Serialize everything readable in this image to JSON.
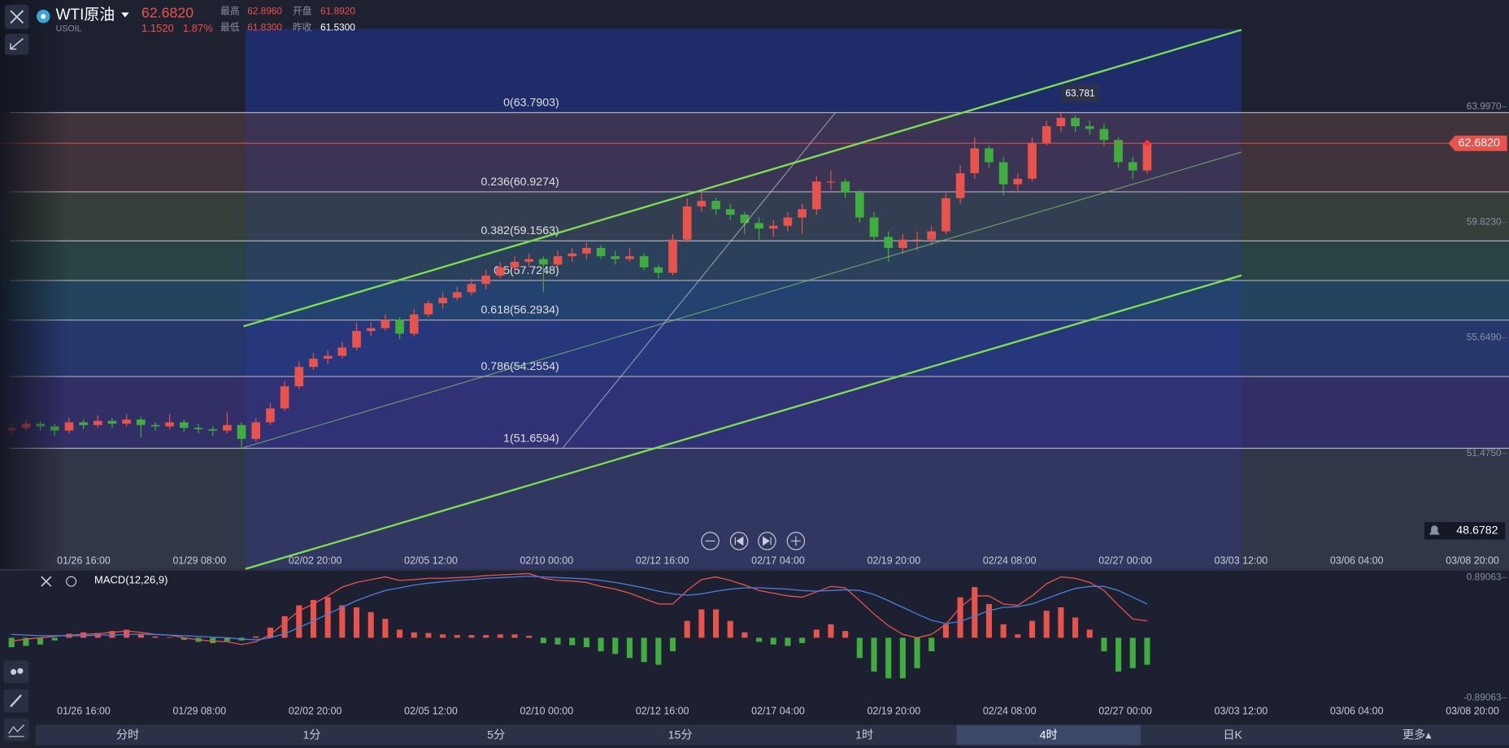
{
  "header": {
    "symbol": "WTI原油",
    "code": "USOIL",
    "price": "62.6820",
    "change": "1.1520",
    "change_pct": "1.87%",
    "high_label": "最高",
    "high": "62.8960",
    "open_label": "开盘",
    "open": "61.8920",
    "low_label": "最低",
    "low": "61.8300",
    "prev_close_label": "昨收",
    "prev_close": "61.5300"
  },
  "chart_data": [
    {
      "type": "candlestick",
      "up_color": "#e8534b",
      "down_color": "#3fae3f",
      "ylim": [
        47.3,
        67.86
      ],
      "yticks": [
        {
          "value": 63.997,
          "label": "63.9970"
        },
        {
          "value": 59.823,
          "label": "59.8230"
        },
        {
          "value": 55.649,
          "label": "55.6490"
        },
        {
          "value": 51.475,
          "label": "51.4750"
        }
      ],
      "time_labels": [
        "01/26 16:00",
        "01/29 08:00",
        "02/02 20:00",
        "02/05 12:00",
        "02/10 00:00",
        "02/12 16:00",
        "02/17 04:00",
        "02/19 20:00",
        "02/24 08:00",
        "02/27 00:00",
        "03/03 12:00",
        "03/06 04:00",
        "03/08 20:00"
      ],
      "fib_levels": [
        {
          "label": "0(63.7903)",
          "value": 63.7903
        },
        {
          "label": "0.236(60.9274)",
          "value": 60.9274
        },
        {
          "label": "0.382(59.1563)",
          "value": 59.1563
        },
        {
          "label": "0.5(57.7248)",
          "value": 57.7248
        },
        {
          "label": "0.618(56.2934)",
          "value": 56.2934
        },
        {
          "label": "0.786(54.2554)",
          "value": 54.2554
        },
        {
          "label": "1(51.6594)",
          "value": 51.6594
        }
      ],
      "last_price": {
        "value": 62.682,
        "label": "62.6820"
      },
      "high_marker": 63.781,
      "alert_price": 48.6782,
      "candles": [
        [
          52.3,
          52.55,
          52.15,
          52.4
        ],
        [
          52.4,
          52.7,
          52.3,
          52.55
        ],
        [
          52.55,
          52.65,
          52.3,
          52.45
        ],
        [
          52.45,
          52.55,
          52.1,
          52.3
        ],
        [
          52.3,
          52.75,
          52.2,
          52.6
        ],
        [
          52.6,
          52.7,
          52.35,
          52.5
        ],
        [
          52.5,
          52.85,
          52.4,
          52.65
        ],
        [
          52.65,
          52.75,
          52.4,
          52.55
        ],
        [
          52.55,
          52.9,
          52.45,
          52.7
        ],
        [
          52.7,
          52.8,
          52.05,
          52.5
        ],
        [
          52.5,
          52.6,
          52.3,
          52.45
        ],
        [
          52.45,
          52.9,
          52.35,
          52.6
        ],
        [
          52.6,
          52.7,
          52.25,
          52.4
        ],
        [
          52.4,
          52.55,
          52.2,
          52.35
        ],
        [
          52.35,
          52.45,
          52.1,
          52.3
        ],
        [
          52.3,
          52.95,
          52.2,
          52.5
        ],
        [
          52.5,
          52.6,
          51.66,
          52.0
        ],
        [
          52.0,
          52.75,
          51.9,
          52.6
        ],
        [
          52.6,
          53.3,
          52.5,
          53.1
        ],
        [
          53.1,
          54.1,
          53.0,
          53.9
        ],
        [
          53.9,
          54.8,
          53.8,
          54.6
        ],
        [
          54.6,
          55.1,
          54.5,
          54.9
        ],
        [
          54.9,
          55.2,
          54.7,
          55.0
        ],
        [
          55.0,
          55.5,
          54.9,
          55.3
        ],
        [
          55.3,
          56.2,
          55.2,
          55.9
        ],
        [
          55.9,
          56.2,
          55.7,
          56.0
        ],
        [
          56.0,
          56.5,
          55.9,
          56.3
        ],
        [
          56.3,
          56.4,
          55.6,
          55.8
        ],
        [
          55.8,
          56.7,
          55.7,
          56.5
        ],
        [
          56.5,
          57.0,
          56.4,
          56.9
        ],
        [
          56.9,
          57.3,
          56.7,
          57.1
        ],
        [
          57.1,
          57.5,
          57.0,
          57.3
        ],
        [
          57.3,
          57.8,
          57.2,
          57.6
        ],
        [
          57.6,
          58.1,
          57.4,
          57.9
        ],
        [
          57.9,
          58.4,
          57.8,
          58.2
        ],
        [
          58.2,
          58.6,
          58.0,
          58.4
        ],
        [
          58.4,
          58.7,
          58.2,
          58.5
        ],
        [
          58.5,
          58.6,
          57.3,
          58.3
        ],
        [
          58.3,
          58.8,
          58.2,
          58.6
        ],
        [
          58.6,
          58.9,
          58.4,
          58.7
        ],
        [
          58.7,
          59.1,
          58.5,
          58.9
        ],
        [
          58.9,
          59.0,
          58.5,
          58.6
        ],
        [
          58.6,
          58.8,
          58.3,
          58.5
        ],
        [
          58.5,
          58.9,
          58.4,
          58.6
        ],
        [
          58.6,
          58.7,
          58.1,
          58.2
        ],
        [
          58.2,
          58.3,
          57.8,
          58.0
        ],
        [
          58.0,
          59.4,
          57.9,
          59.2
        ],
        [
          59.2,
          60.7,
          59.1,
          60.4
        ],
        [
          60.4,
          60.9,
          60.2,
          60.6
        ],
        [
          60.6,
          60.7,
          60.1,
          60.3
        ],
        [
          60.3,
          60.5,
          59.9,
          60.1
        ],
        [
          60.1,
          60.2,
          59.4,
          59.8
        ],
        [
          59.8,
          60.0,
          59.2,
          59.6
        ],
        [
          59.6,
          59.9,
          59.3,
          59.7
        ],
        [
          59.7,
          60.2,
          59.5,
          60.0
        ],
        [
          60.0,
          60.5,
          59.4,
          60.3
        ],
        [
          60.3,
          61.5,
          60.1,
          61.3
        ],
        [
          61.3,
          61.7,
          61.0,
          61.3
        ],
        [
          61.3,
          61.4,
          60.7,
          60.9
        ],
        [
          60.9,
          61.0,
          59.8,
          60.0
        ],
        [
          60.0,
          60.2,
          59.1,
          59.3
        ],
        [
          59.3,
          59.5,
          58.4,
          58.9
        ],
        [
          58.9,
          59.4,
          58.7,
          59.2
        ],
        [
          59.2,
          59.5,
          58.8,
          59.2
        ],
        [
          59.2,
          59.7,
          59.0,
          59.5
        ],
        [
          59.5,
          60.9,
          59.4,
          60.7
        ],
        [
          60.7,
          61.9,
          60.5,
          61.6
        ],
        [
          61.6,
          62.9,
          61.4,
          62.5
        ],
        [
          62.5,
          62.6,
          61.8,
          62.0
        ],
        [
          62.0,
          62.2,
          60.8,
          61.2
        ],
        [
          61.2,
          61.6,
          60.9,
          61.4
        ],
        [
          61.4,
          62.9,
          61.3,
          62.7
        ],
        [
          62.7,
          63.5,
          62.6,
          63.3
        ],
        [
          63.3,
          63.78,
          63.1,
          63.6
        ],
        [
          63.6,
          63.7,
          63.1,
          63.3
        ],
        [
          63.3,
          63.5,
          63.0,
          63.2
        ],
        [
          63.2,
          63.4,
          62.6,
          62.8
        ],
        [
          62.8,
          62.9,
          61.8,
          62.0
        ],
        [
          62.0,
          62.2,
          61.4,
          61.7
        ],
        [
          61.7,
          62.8,
          61.6,
          62.682
        ]
      ]
    },
    {
      "type": "macd",
      "title": "MACD(12,26,9)",
      "ylim": [
        -0.89063,
        0.89063
      ],
      "yticks": [
        0.89063,
        -0.89063
      ],
      "pos_color": "#e8534b",
      "neg_color": "#3fae3f",
      "dif_color": "#e8534b",
      "dea_color": "#4a7fe0",
      "histogram": [
        -0.14,
        -0.12,
        -0.1,
        -0.04,
        0.06,
        0.08,
        0.07,
        0.1,
        0.12,
        0.06,
        0.02,
        0.01,
        -0.03,
        -0.06,
        -0.08,
        -0.05,
        -0.04,
        0.02,
        0.15,
        0.32,
        0.48,
        0.56,
        0.6,
        0.48,
        0.45,
        0.38,
        0.28,
        0.12,
        0.08,
        0.07,
        0.05,
        0.04,
        0.04,
        0.04,
        0.05,
        0.05,
        0.03,
        -0.08,
        -0.1,
        -0.11,
        -0.14,
        -0.2,
        -0.24,
        -0.3,
        -0.36,
        -0.4,
        -0.2,
        0.25,
        0.42,
        0.42,
        0.25,
        0.08,
        -0.06,
        -0.1,
        -0.12,
        -0.08,
        0.12,
        0.2,
        0.1,
        -0.3,
        -0.5,
        -0.6,
        -0.6,
        -0.45,
        -0.2,
        0.2,
        0.6,
        0.75,
        0.5,
        0.2,
        0.05,
        0.25,
        0.4,
        0.45,
        0.3,
        0.12,
        -0.2,
        -0.5,
        -0.45,
        -0.4
      ],
      "dif": [
        -0.05,
        -0.02,
        0.0,
        0.02,
        0.04,
        0.05,
        0.06,
        0.08,
        0.1,
        0.08,
        0.05,
        0.04,
        0.0,
        -0.03,
        -0.05,
        -0.06,
        -0.1,
        -0.06,
        0.05,
        0.22,
        0.4,
        0.5,
        0.62,
        0.75,
        0.82,
        0.86,
        0.9,
        0.85,
        0.86,
        0.88,
        0.88,
        0.89,
        0.9,
        0.92,
        0.93,
        0.94,
        0.95,
        0.88,
        0.85,
        0.84,
        0.82,
        0.76,
        0.72,
        0.66,
        0.58,
        0.5,
        0.5,
        0.7,
        0.86,
        0.9,
        0.85,
        0.78,
        0.7,
        0.66,
        0.62,
        0.6,
        0.68,
        0.76,
        0.74,
        0.55,
        0.35,
        0.18,
        0.05,
        0.0,
        0.05,
        0.2,
        0.45,
        0.62,
        0.62,
        0.5,
        0.48,
        0.62,
        0.8,
        0.9,
        0.88,
        0.82,
        0.7,
        0.48,
        0.28,
        0.25
      ],
      "dea": [
        0.05,
        0.04,
        0.03,
        0.03,
        0.03,
        0.03,
        0.04,
        0.04,
        0.05,
        0.05,
        0.05,
        0.04,
        0.03,
        0.02,
        0.01,
        0.0,
        -0.02,
        -0.03,
        0.0,
        0.06,
        0.15,
        0.25,
        0.35,
        0.45,
        0.55,
        0.63,
        0.7,
        0.74,
        0.78,
        0.81,
        0.83,
        0.85,
        0.86,
        0.88,
        0.89,
        0.9,
        0.91,
        0.9,
        0.89,
        0.88,
        0.87,
        0.85,
        0.82,
        0.78,
        0.74,
        0.69,
        0.65,
        0.63,
        0.65,
        0.69,
        0.72,
        0.74,
        0.74,
        0.73,
        0.72,
        0.7,
        0.69,
        0.7,
        0.71,
        0.7,
        0.64,
        0.55,
        0.45,
        0.35,
        0.26,
        0.21,
        0.24,
        0.32,
        0.4,
        0.45,
        0.46,
        0.5,
        0.58,
        0.66,
        0.73,
        0.76,
        0.76,
        0.7,
        0.6,
        0.5
      ]
    }
  ],
  "tabs": [
    "分时",
    "1分",
    "5分",
    "15分",
    "1时",
    "4时",
    "日K",
    "更多▴"
  ],
  "active_tab": 5
}
